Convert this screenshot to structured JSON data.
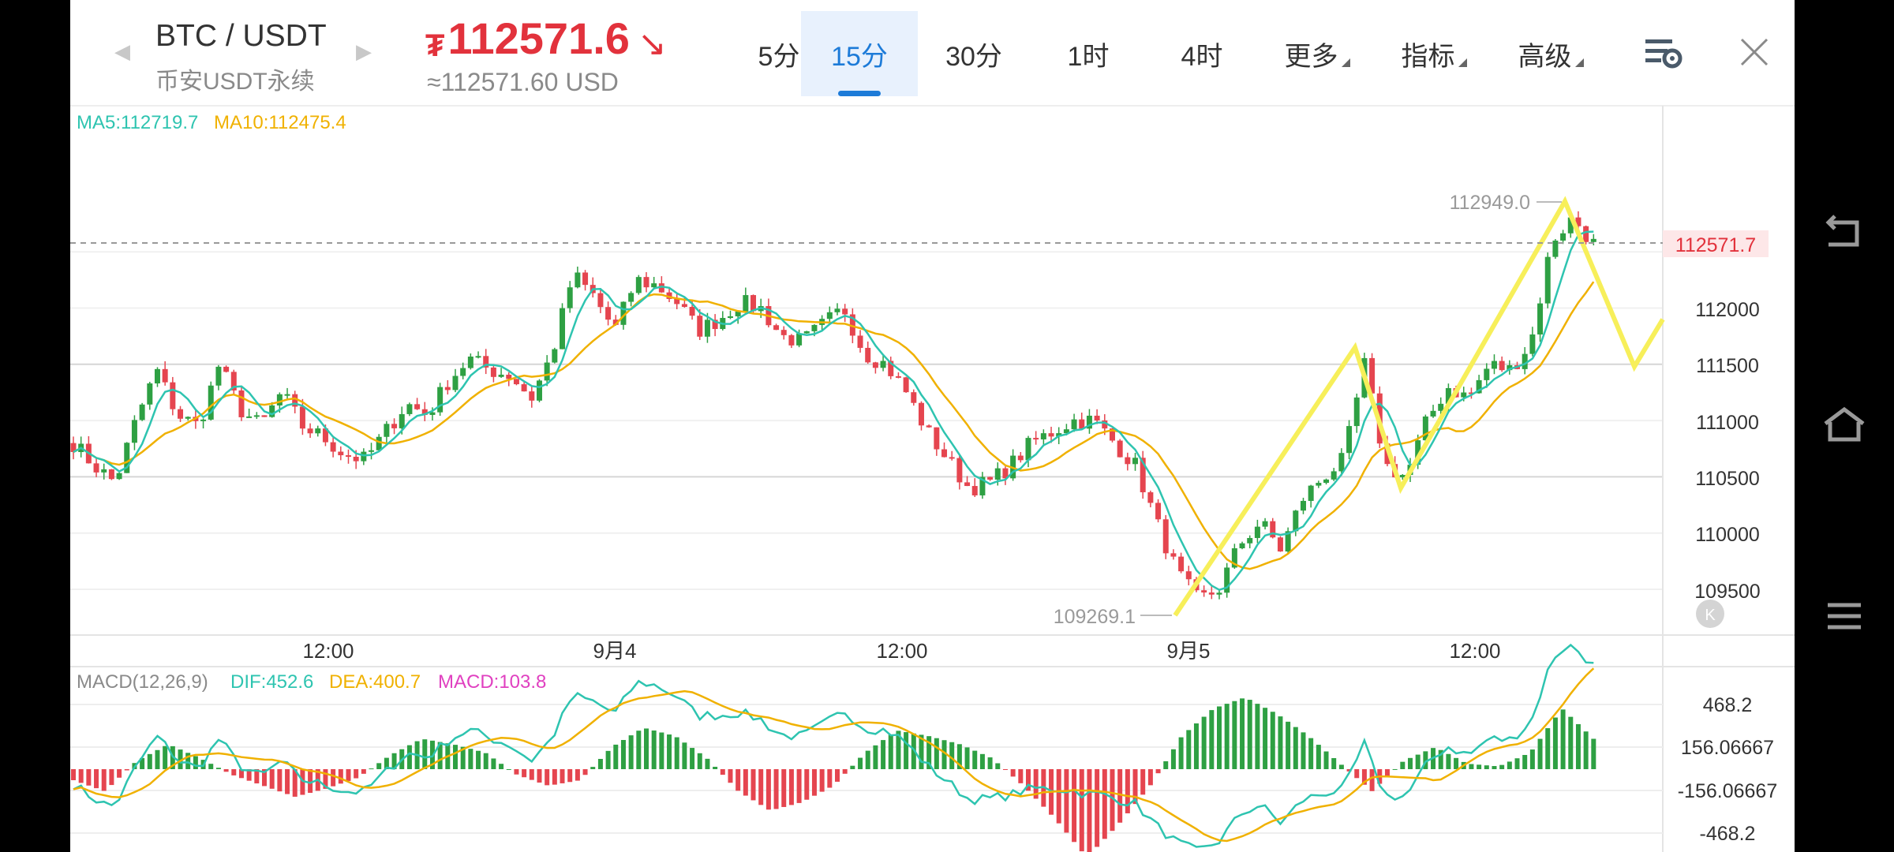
{
  "header": {
    "symbol": "BTC / USDT",
    "exchange": "币安USDT永续",
    "currency_symbol": "₮",
    "price": "112571.6",
    "price_usd": "≈112571.60 USD",
    "price_color": "#e2323c"
  },
  "tabs": [
    {
      "label": "5分"
    },
    {
      "label": "15分",
      "selected": true
    },
    {
      "label": "30分"
    },
    {
      "label": "1时"
    },
    {
      "label": "4时"
    },
    {
      "label": "更多"
    },
    {
      "label": "指标"
    },
    {
      "label": "高级"
    }
  ],
  "icons": {
    "settings": "chart-settings-icon",
    "close": "close-icon"
  },
  "main": {
    "ma5": "MA5:112719.7",
    "ma10": "MA10:112475.4",
    "high_marker": "112949.0",
    "low_marker": "109269.1",
    "current_price_label": "112571.7",
    "price_axis": [
      "112000",
      "111500",
      "111000",
      "110500",
      "110000",
      "109500"
    ],
    "time_axis": [
      "12:00",
      "9月4",
      "12:00",
      "9月5",
      "12:00"
    ]
  },
  "macd": {
    "title": "MACD(12,26,9)",
    "dif": "DIF:452.6",
    "dea": "DEA:400.7",
    "macd": "MACD:103.8",
    "axis": [
      "468.2",
      "156.06667",
      "-156.06667",
      "-468.2"
    ]
  },
  "colors": {
    "up": "#2ea043",
    "down": "#e5454f",
    "ma5": "#2ec4b0",
    "ma10": "#f0b100",
    "macd": "#e040c0",
    "annotation": "#f7ef5a",
    "accent": "#1d7bd8"
  },
  "chart_data": {
    "type": "candlestick",
    "interval": "15分",
    "price_range": [
      109269.1,
      112949.0
    ],
    "close_path": [
      110800,
      110600,
      110450,
      111000,
      111450,
      111050,
      110950,
      111500,
      111100,
      110950,
      111250,
      110950,
      110850,
      110700,
      110650,
      110900,
      111150,
      111050,
      111350,
      111550,
      111450,
      111400,
      111200,
      111600,
      112300,
      112100,
      111800,
      112250,
      112200,
      112050,
      111800,
      111900,
      112050,
      112000,
      111750,
      111700,
      111850,
      112000,
      111600,
      111500,
      111250,
      110900,
      110650,
      110400,
      110450,
      110600,
      110800,
      110900,
      111000,
      111000,
      110800,
      110600,
      110100,
      109650,
      109400,
      109500,
      109900,
      110100,
      109850,
      110300,
      110500,
      110650,
      111500,
      110600,
      110500,
      111000,
      111300,
      111200,
      111500,
      111450,
      111700,
      112600,
      112800,
      112571
    ],
    "annotation_zigzag": [
      109269,
      111650,
      110400,
      112949,
      111480,
      111900
    ],
    "macd_hist": [
      -40,
      -80,
      30,
      90,
      40,
      -20,
      -60,
      -100,
      -70,
      -30,
      50,
      110,
      90,
      60,
      -20,
      -60,
      -40,
      80,
      150,
      120,
      40,
      -80,
      -150,
      -120,
      -60,
      60,
      140,
      120,
      90,
      40,
      -60,
      -180,
      -320,
      -200,
      -60,
      120,
      220,
      260,
      200,
      120,
      20,
      -80,
      30,
      80,
      20,
      10,
      60,
      220,
      110
    ]
  }
}
